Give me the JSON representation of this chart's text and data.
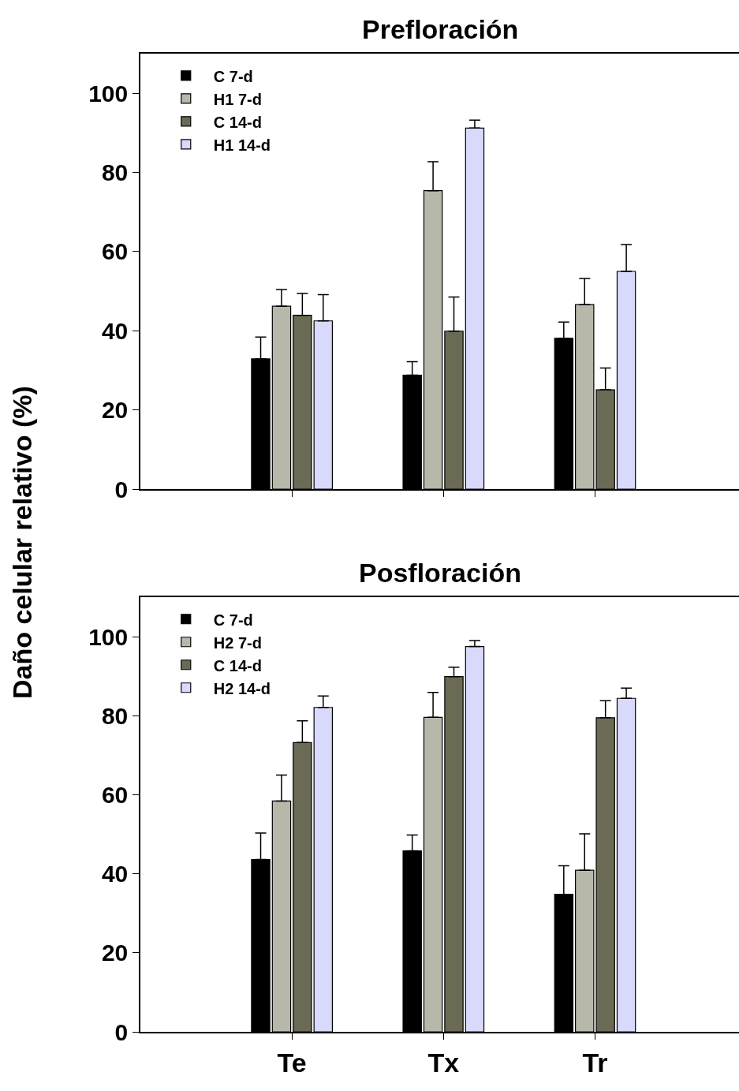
{
  "chart_data": [
    {
      "type": "bar",
      "title": "Prefloración",
      "ylabel": "Daño celular relativo (%)",
      "categories": [
        null,
        null,
        null
      ],
      "ylim": [
        0,
        110
      ],
      "yticks": [
        0,
        20,
        40,
        60,
        80,
        100
      ],
      "tick_labels": "y",
      "legend": "top left",
      "series": [
        {
          "name": "C 7-d",
          "color": "#000000",
          "values": [
            32.9,
            28.8,
            38.1
          ],
          "errors": [
            [
              32.9,
              38.4
            ],
            [
              28.8,
              32.2
            ],
            [
              38.1,
              42.2
            ]
          ]
        },
        {
          "name": "H1 7-d",
          "color": "#b8b8aa",
          "values": [
            46.2,
            75.4,
            46.6
          ],
          "errors": [
            [
              46.2,
              50.4
            ],
            [
              75.4,
              82.7
            ],
            [
              46.6,
              53.2
            ]
          ]
        },
        {
          "name": "C 14-d",
          "color": "#6b6b55",
          "values": [
            43.9,
            39.9,
            25.1
          ],
          "errors": [
            [
              43.9,
              49.4
            ],
            [
              39.9,
              48.5
            ],
            [
              25.1,
              30.6
            ]
          ]
        },
        {
          "name": "H1 14-d",
          "color": "#d9d9fb",
          "values": [
            42.5,
            91.2,
            55.0
          ],
          "errors": [
            [
              42.5,
              49.1
            ],
            [
              91.2,
              93.2
            ],
            [
              55.0,
              61.8
            ]
          ]
        }
      ]
    },
    {
      "type": "bar",
      "title": "Posfloración",
      "categories": [
        "Te",
        "Tx",
        "Tr"
      ],
      "ylim": [
        0,
        110
      ],
      "yticks": [
        0,
        20,
        40,
        60,
        80,
        100
      ],
      "legend": "top left",
      "series": [
        {
          "name": "C 7-d",
          "color": "#000000",
          "values": [
            43.6,
            45.8,
            34.8
          ],
          "errors": [
            [
              43.6,
              50.3
            ],
            [
              45.8,
              49.8
            ],
            [
              34.8,
              42.0
            ]
          ]
        },
        {
          "name": "H2 7-d",
          "color": "#b8b8aa",
          "values": [
            58.4,
            79.6,
            40.9
          ],
          "errors": [
            [
              58.4,
              65.0
            ],
            [
              79.6,
              85.9
            ],
            [
              40.9,
              50.1
            ]
          ]
        },
        {
          "name": "C 14-d",
          "color": "#6b6b55",
          "values": [
            73.2,
            89.9,
            79.5
          ],
          "errors": [
            [
              73.2,
              78.7
            ],
            [
              89.9,
              92.3
            ],
            [
              79.5,
              83.8
            ]
          ]
        },
        {
          "name": "H2 14-d",
          "color": "#d9d9fb",
          "values": [
            82.1,
            97.5,
            84.4
          ],
          "errors": [
            [
              82.1,
              85.0
            ],
            [
              97.5,
              99.0
            ],
            [
              84.4,
              87.0
            ]
          ]
        }
      ]
    }
  ]
}
